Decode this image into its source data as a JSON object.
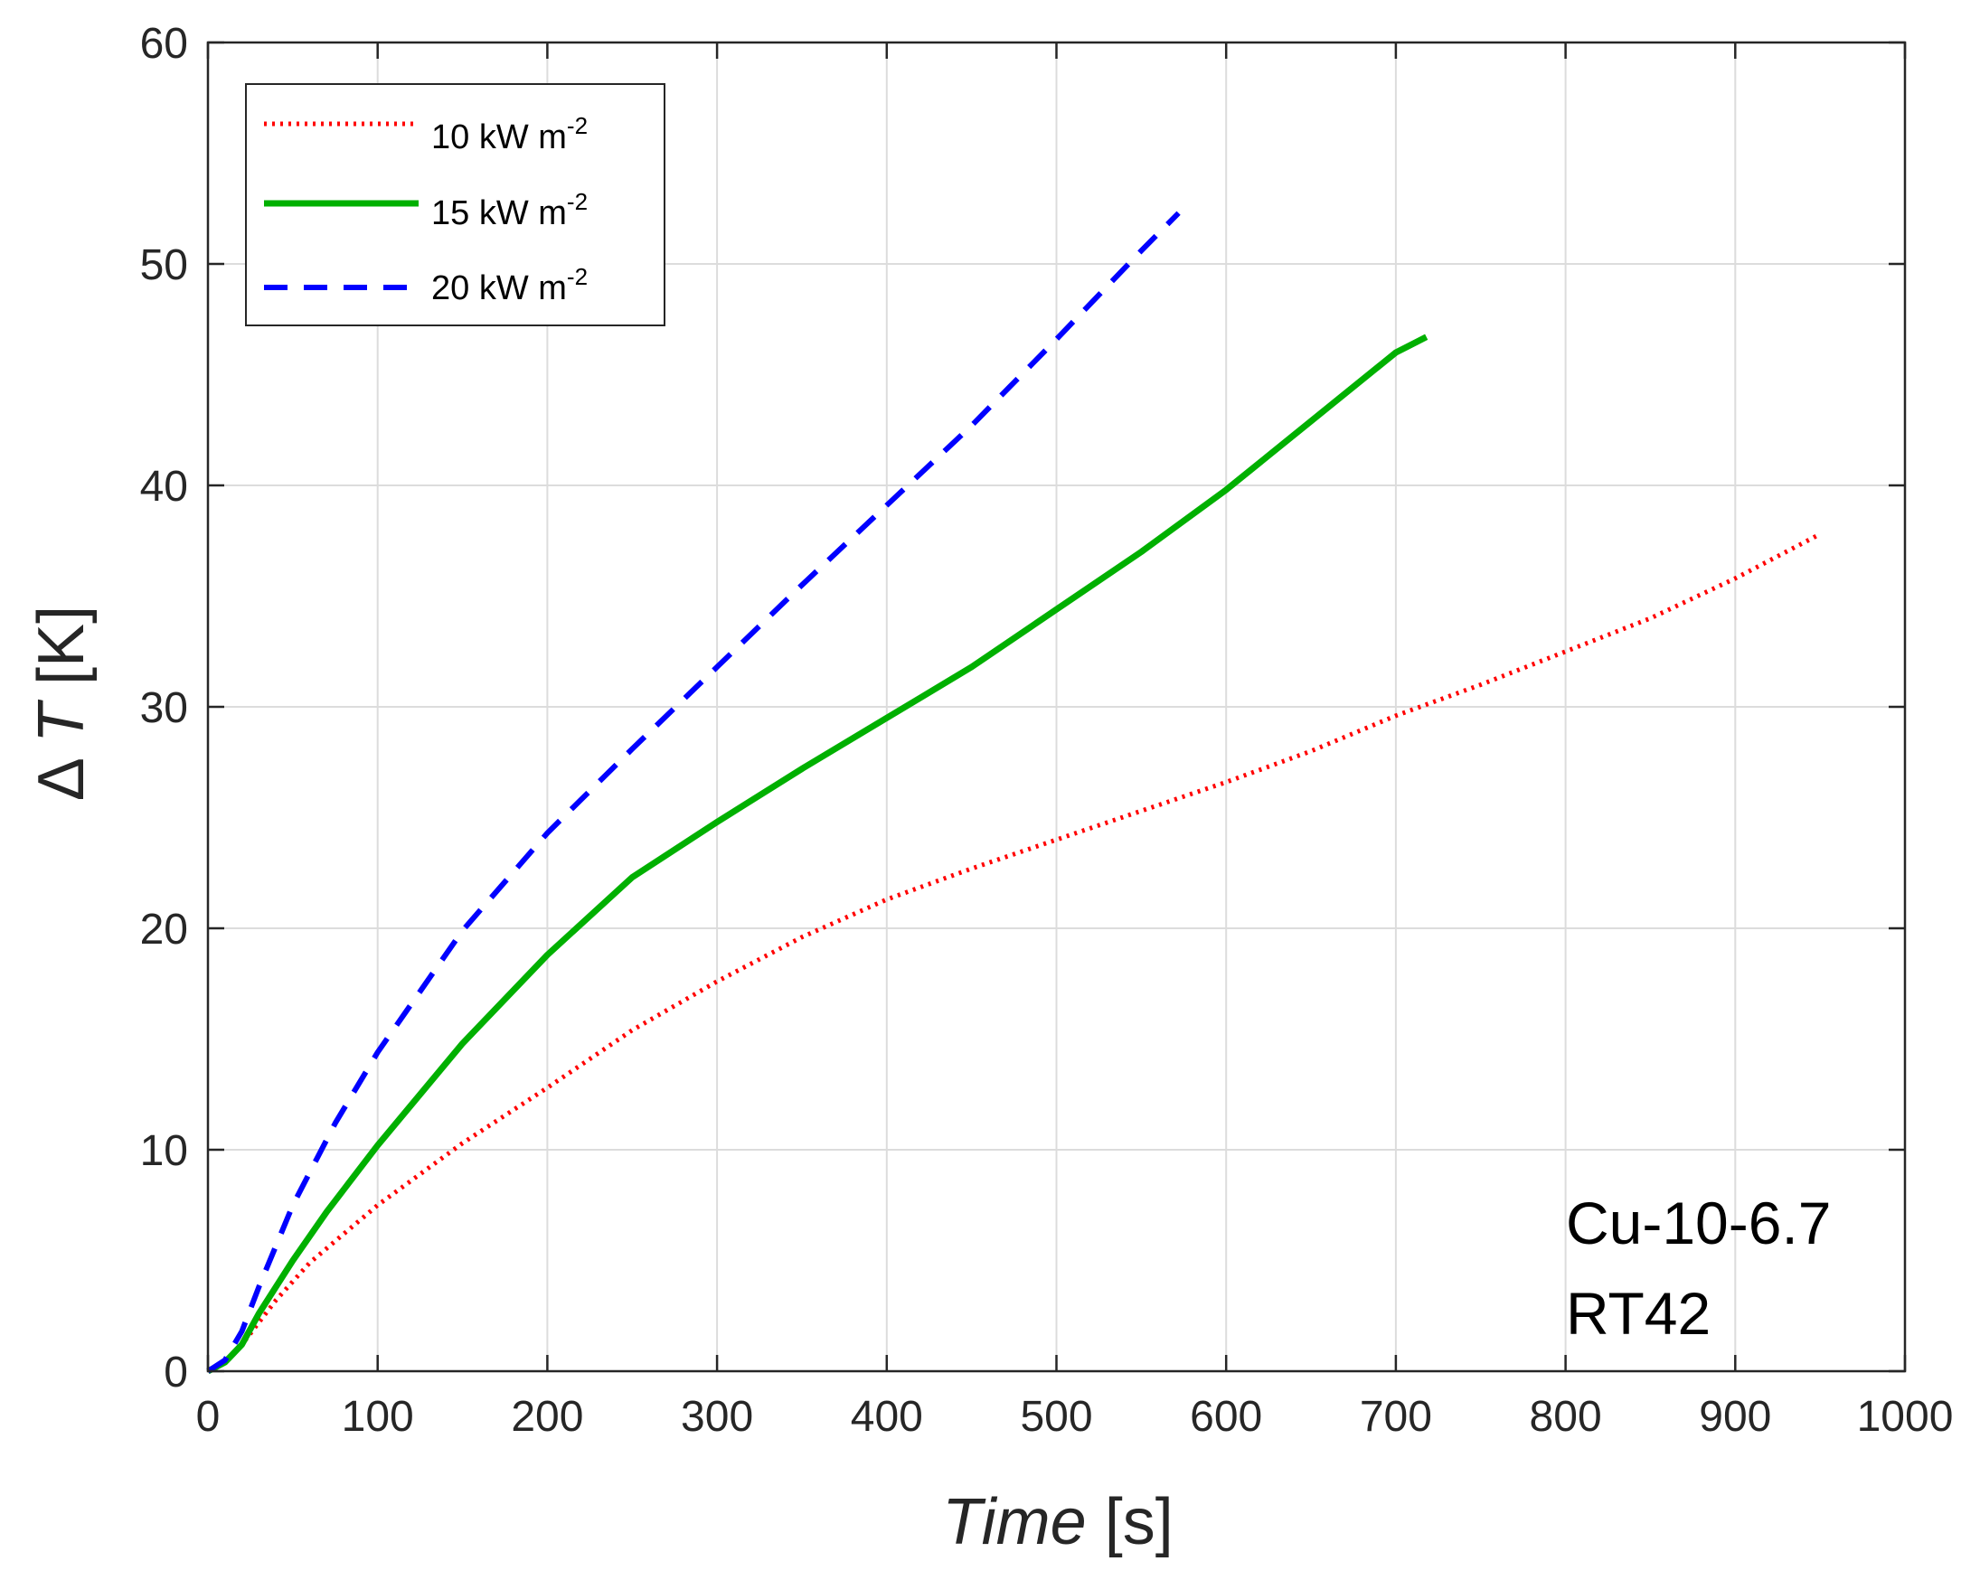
{
  "chart_data": {
    "type": "line",
    "title": "",
    "xlabel": "Time",
    "xlabel_unit": "[s]",
    "ylabel_symbol": "Δ",
    "ylabel_var": "T",
    "ylabel_unit": "[K]",
    "xlim": [
      0,
      1000
    ],
    "ylim": [
      0,
      60
    ],
    "xticks": [
      0,
      100,
      200,
      300,
      400,
      500,
      600,
      700,
      800,
      900,
      1000
    ],
    "yticks": [
      0,
      10,
      20,
      30,
      40,
      50,
      60
    ],
    "grid": true,
    "legend_position": "top-left",
    "legend_unit_base": "kW m",
    "legend_unit_exp": "-2",
    "annotations": [
      "Cu-10-6.7",
      "RT42"
    ],
    "series": [
      {
        "name": "10 kW m-2",
        "label_value": "10",
        "color": "#ff0000",
        "style": "dotted",
        "x": [
          0,
          10,
          20,
          40,
          60,
          100,
          150,
          200,
          250,
          300,
          350,
          400,
          450,
          500,
          550,
          600,
          650,
          700,
          750,
          800,
          850,
          900,
          950
        ],
        "y": [
          0,
          0.4,
          1.2,
          3.2,
          4.9,
          7.5,
          10.3,
          12.8,
          15.4,
          17.6,
          19.6,
          21.3,
          22.7,
          24.0,
          25.3,
          26.6,
          28.0,
          29.6,
          31.0,
          32.5,
          34.0,
          35.8,
          37.8
        ]
      },
      {
        "name": "15 kW m-2",
        "label_value": "15",
        "color": "#00b000",
        "style": "solid",
        "x": [
          0,
          10,
          20,
          30,
          50,
          70,
          100,
          150,
          200,
          250,
          300,
          350,
          400,
          450,
          500,
          550,
          600,
          650,
          700,
          718
        ],
        "y": [
          0,
          0.4,
          1.2,
          2.6,
          5.0,
          7.2,
          10.2,
          14.8,
          18.8,
          22.3,
          24.8,
          27.2,
          29.5,
          31.8,
          34.4,
          37.0,
          39.8,
          42.9,
          46.0,
          46.7
        ]
      },
      {
        "name": "20 kW m-2",
        "label_value": "20",
        "color": "#0000ff",
        "style": "dashed",
        "x": [
          0,
          10,
          20,
          30,
          50,
          75,
          100,
          150,
          200,
          250,
          300,
          350,
          400,
          450,
          500,
          550,
          572
        ],
        "y": [
          0,
          0.5,
          1.8,
          3.8,
          7.5,
          11.2,
          14.4,
          19.9,
          24.3,
          28.1,
          31.8,
          35.5,
          39.1,
          42.7,
          46.6,
          50.6,
          52.3
        ]
      }
    ]
  }
}
